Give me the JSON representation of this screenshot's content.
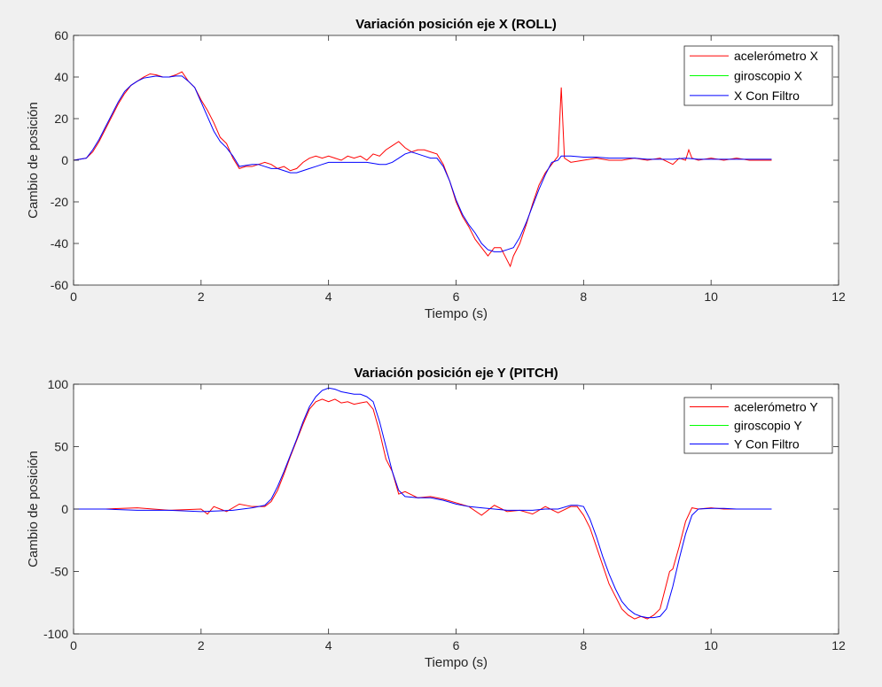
{
  "chart_data": [
    {
      "type": "line",
      "title": "Variación posición eje X (ROLL)",
      "xlabel": "Tiempo (s)",
      "ylabel": "Cambio de posición",
      "xlim": [
        0,
        12
      ],
      "ylim": [
        -60,
        60
      ],
      "xticks": [
        0,
        2,
        4,
        6,
        8,
        10,
        12
      ],
      "yticks": [
        -60,
        -40,
        -20,
        0,
        20,
        40,
        60
      ],
      "legend_position": "top-right",
      "grid": false,
      "series": [
        {
          "name": "acelerómetro X",
          "color": "#ff0000",
          "x": [
            0,
            0.2,
            0.3,
            0.4,
            0.5,
            0.6,
            0.7,
            0.8,
            0.9,
            1.0,
            1.1,
            1.2,
            1.3,
            1.4,
            1.5,
            1.6,
            1.7,
            1.8,
            1.9,
            2.0,
            2.1,
            2.2,
            2.3,
            2.4,
            2.5,
            2.6,
            2.7,
            2.8,
            2.9,
            3.0,
            3.1,
            3.2,
            3.3,
            3.4,
            3.5,
            3.6,
            3.7,
            3.8,
            3.9,
            4.0,
            4.1,
            4.2,
            4.3,
            4.4,
            4.5,
            4.6,
            4.7,
            4.8,
            4.9,
            5.0,
            5.1,
            5.2,
            5.3,
            5.4,
            5.5,
            5.6,
            5.7,
            5.8,
            5.9,
            6.0,
            6.1,
            6.2,
            6.3,
            6.4,
            6.5,
            6.6,
            6.7,
            6.8,
            6.85,
            6.9,
            7.0,
            7.1,
            7.2,
            7.3,
            7.4,
            7.5,
            7.6,
            7.65,
            7.7,
            7.8,
            8.0,
            8.2,
            8.4,
            8.6,
            8.8,
            9.0,
            9.2,
            9.4,
            9.5,
            9.6,
            9.65,
            9.7,
            9.8,
            10.0,
            10.2,
            10.4,
            10.6,
            10.8,
            10.95
          ],
          "y": [
            0,
            1,
            4,
            9,
            15,
            21,
            27,
            32,
            36,
            38,
            40,
            41.5,
            41,
            40,
            40,
            41,
            42.5,
            38,
            35,
            29,
            24,
            18,
            11,
            8,
            1,
            -4,
            -3,
            -3,
            -2,
            -1,
            -2,
            -4,
            -3,
            -5,
            -4,
            -1,
            1,
            2,
            1,
            2,
            1,
            0,
            2,
            1,
            2,
            0,
            3,
            2,
            5,
            7,
            9,
            6,
            4,
            5,
            5,
            4,
            3,
            -2,
            -10,
            -20,
            -27,
            -32,
            -38,
            -42,
            -46,
            -42,
            -42,
            -48,
            -51,
            -46,
            -40,
            -31,
            -21,
            -12,
            -6,
            -2,
            2,
            35,
            1,
            -1,
            0,
            1,
            0,
            0,
            1,
            0,
            1,
            -2,
            1,
            0,
            5,
            1,
            0,
            1,
            0,
            1,
            0,
            0,
            0
          ]
        },
        {
          "name": "giroscopio X",
          "color": "#00ff00",
          "x": [],
          "y": []
        },
        {
          "name": "X Con Filtro",
          "color": "#0000ff",
          "x": [
            0,
            0.2,
            0.3,
            0.4,
            0.5,
            0.6,
            0.7,
            0.8,
            0.9,
            1.0,
            1.1,
            1.2,
            1.3,
            1.4,
            1.5,
            1.6,
            1.7,
            1.8,
            1.9,
            2.0,
            2.1,
            2.2,
            2.3,
            2.4,
            2.5,
            2.6,
            2.7,
            2.8,
            2.9,
            3.0,
            3.1,
            3.2,
            3.3,
            3.4,
            3.5,
            3.6,
            3.7,
            3.8,
            3.9,
            4.0,
            4.2,
            4.4,
            4.6,
            4.8,
            4.9,
            5.0,
            5.1,
            5.2,
            5.3,
            5.4,
            5.5,
            5.6,
            5.7,
            5.8,
            5.9,
            6.0,
            6.1,
            6.2,
            6.3,
            6.4,
            6.5,
            6.6,
            6.7,
            6.8,
            6.9,
            7.0,
            7.1,
            7.2,
            7.3,
            7.4,
            7.5,
            7.6,
            7.65,
            7.7,
            7.8,
            8.0,
            8.2,
            8.4,
            8.6,
            8.8,
            9.0,
            9.2,
            9.4,
            9.6,
            9.8,
            10.0,
            10.2,
            10.4,
            10.6,
            10.8,
            10.95
          ],
          "y": [
            0,
            1,
            5,
            10,
            16,
            22,
            28,
            33,
            36,
            38,
            39.5,
            40,
            40.5,
            40,
            40,
            40.5,
            40.5,
            38,
            35,
            28,
            21,
            14,
            9,
            6,
            2,
            -3,
            -2.5,
            -2,
            -2,
            -3,
            -4,
            -4,
            -5,
            -6,
            -6,
            -5,
            -4,
            -3,
            -2,
            -1,
            -1,
            -1,
            -1,
            -2,
            -2,
            -1,
            1,
            3,
            4,
            3,
            2,
            1,
            1,
            -3,
            -10,
            -19,
            -26,
            -31,
            -35,
            -40,
            -43,
            -44,
            -44,
            -43,
            -42,
            -37,
            -30,
            -22,
            -14,
            -7,
            -1,
            0,
            2,
            2,
            2,
            1.5,
            1.5,
            1,
            1,
            1,
            0.5,
            0.5,
            0.5,
            1,
            0.5,
            0.5,
            0.5,
            0.5,
            0.5,
            0.5,
            0.5
          ]
        }
      ]
    },
    {
      "type": "line",
      "title": "Variación posición eje Y (PITCH)",
      "xlabel": "Tiempo (s)",
      "ylabel": "Cambio de posición",
      "xlim": [
        0,
        12
      ],
      "ylim": [
        -100,
        100
      ],
      "xticks": [
        0,
        2,
        4,
        6,
        8,
        10,
        12
      ],
      "yticks": [
        -100,
        -50,
        0,
        50,
        100
      ],
      "legend_position": "top-right",
      "grid": false,
      "series": [
        {
          "name": "acelerómetro Y",
          "color": "#ff0000",
          "x": [
            0,
            0.5,
            1.0,
            1.5,
            2.0,
            2.1,
            2.2,
            2.3,
            2.4,
            2.6,
            2.8,
            3.0,
            3.1,
            3.2,
            3.3,
            3.4,
            3.5,
            3.6,
            3.7,
            3.8,
            3.9,
            4.0,
            4.1,
            4.2,
            4.3,
            4.4,
            4.5,
            4.6,
            4.7,
            4.8,
            4.9,
            5.0,
            5.1,
            5.2,
            5.4,
            5.6,
            5.8,
            6.0,
            6.2,
            6.4,
            6.6,
            6.8,
            7.0,
            7.2,
            7.4,
            7.6,
            7.8,
            7.9,
            8.0,
            8.1,
            8.2,
            8.3,
            8.4,
            8.5,
            8.6,
            8.7,
            8.8,
            8.9,
            9.0,
            9.1,
            9.2,
            9.3,
            9.35,
            9.4,
            9.5,
            9.6,
            9.7,
            9.8,
            10.0,
            10.2,
            10.4,
            10.6,
            10.8,
            10.95
          ],
          "y": [
            0,
            0,
            1,
            -1,
            0,
            -4,
            2,
            0,
            -2,
            4,
            2,
            2,
            6,
            15,
            28,
            42,
            55,
            68,
            80,
            86,
            88,
            86,
            88,
            85,
            86,
            84,
            85,
            86,
            80,
            62,
            40,
            30,
            12,
            14,
            9,
            10,
            8,
            5,
            2,
            -5,
            3,
            -2,
            -1,
            -4,
            2,
            -3,
            2,
            2,
            -5,
            -15,
            -30,
            -45,
            -60,
            -70,
            -80,
            -85,
            -88,
            -86,
            -88,
            -85,
            -80,
            -60,
            -50,
            -48,
            -30,
            -10,
            1,
            0,
            1,
            0,
            0,
            0,
            0,
            0
          ]
        },
        {
          "name": "giroscopio Y",
          "color": "#00ff00",
          "x": [],
          "y": []
        },
        {
          "name": "Y Con Filtro",
          "color": "#0000ff",
          "x": [
            0,
            0.5,
            1.0,
            1.5,
            2.0,
            2.5,
            2.8,
            3.0,
            3.1,
            3.2,
            3.3,
            3.4,
            3.5,
            3.6,
            3.7,
            3.8,
            3.9,
            4.0,
            4.1,
            4.2,
            4.3,
            4.4,
            4.5,
            4.6,
            4.7,
            4.8,
            4.9,
            5.0,
            5.1,
            5.2,
            5.4,
            5.6,
            5.8,
            6.0,
            6.2,
            6.4,
            6.6,
            6.8,
            7.0,
            7.2,
            7.4,
            7.6,
            7.8,
            7.9,
            8.0,
            8.1,
            8.2,
            8.3,
            8.4,
            8.5,
            8.6,
            8.7,
            8.8,
            8.9,
            9.0,
            9.1,
            9.2,
            9.3,
            9.4,
            9.5,
            9.6,
            9.7,
            9.8,
            10.0,
            10.2,
            10.4,
            10.6,
            10.8,
            10.95
          ],
          "y": [
            0,
            0,
            -1,
            -1,
            -2,
            -1,
            1,
            3,
            8,
            18,
            30,
            43,
            56,
            70,
            82,
            90,
            95,
            97,
            96,
            94,
            93,
            92,
            92,
            90,
            86,
            70,
            50,
            30,
            15,
            10,
            9,
            9,
            7,
            4,
            2,
            1,
            0,
            -1,
            -1,
            -1,
            0,
            0,
            3,
            3,
            2,
            -8,
            -22,
            -38,
            -52,
            -64,
            -74,
            -80,
            -84,
            -86,
            -87,
            -87,
            -86,
            -80,
            -62,
            -40,
            -20,
            -5,
            0,
            0.5,
            0.5,
            0,
            0,
            0,
            0
          ]
        }
      ]
    }
  ]
}
